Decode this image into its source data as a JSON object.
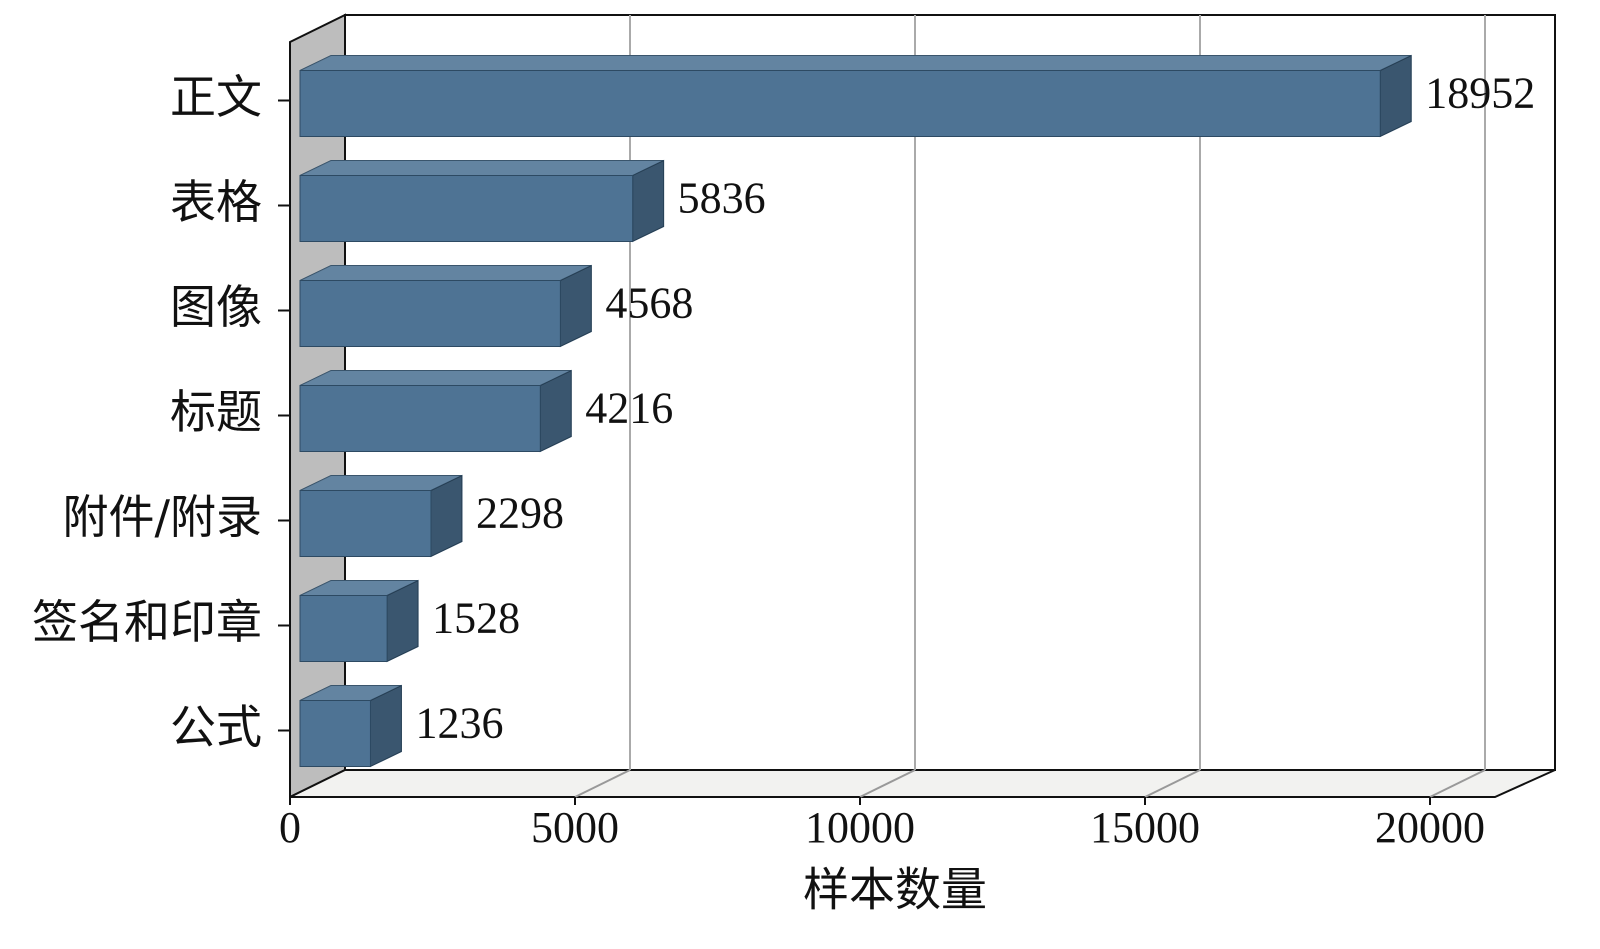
{
  "chart_data": {
    "type": "bar3d-horizontal",
    "categories": [
      "正文",
      "表格",
      "图像",
      "标题",
      "附件/附录",
      "签名和印章",
      "公式"
    ],
    "values": [
      18952,
      5836,
      4568,
      4216,
      2298,
      1528,
      1236
    ],
    "color": "#4e7394",
    "x_label": "样本数量",
    "xlim": [
      0,
      20000
    ],
    "xticks": [
      0,
      5000,
      10000,
      15000,
      20000
    ],
    "grid": true
  }
}
